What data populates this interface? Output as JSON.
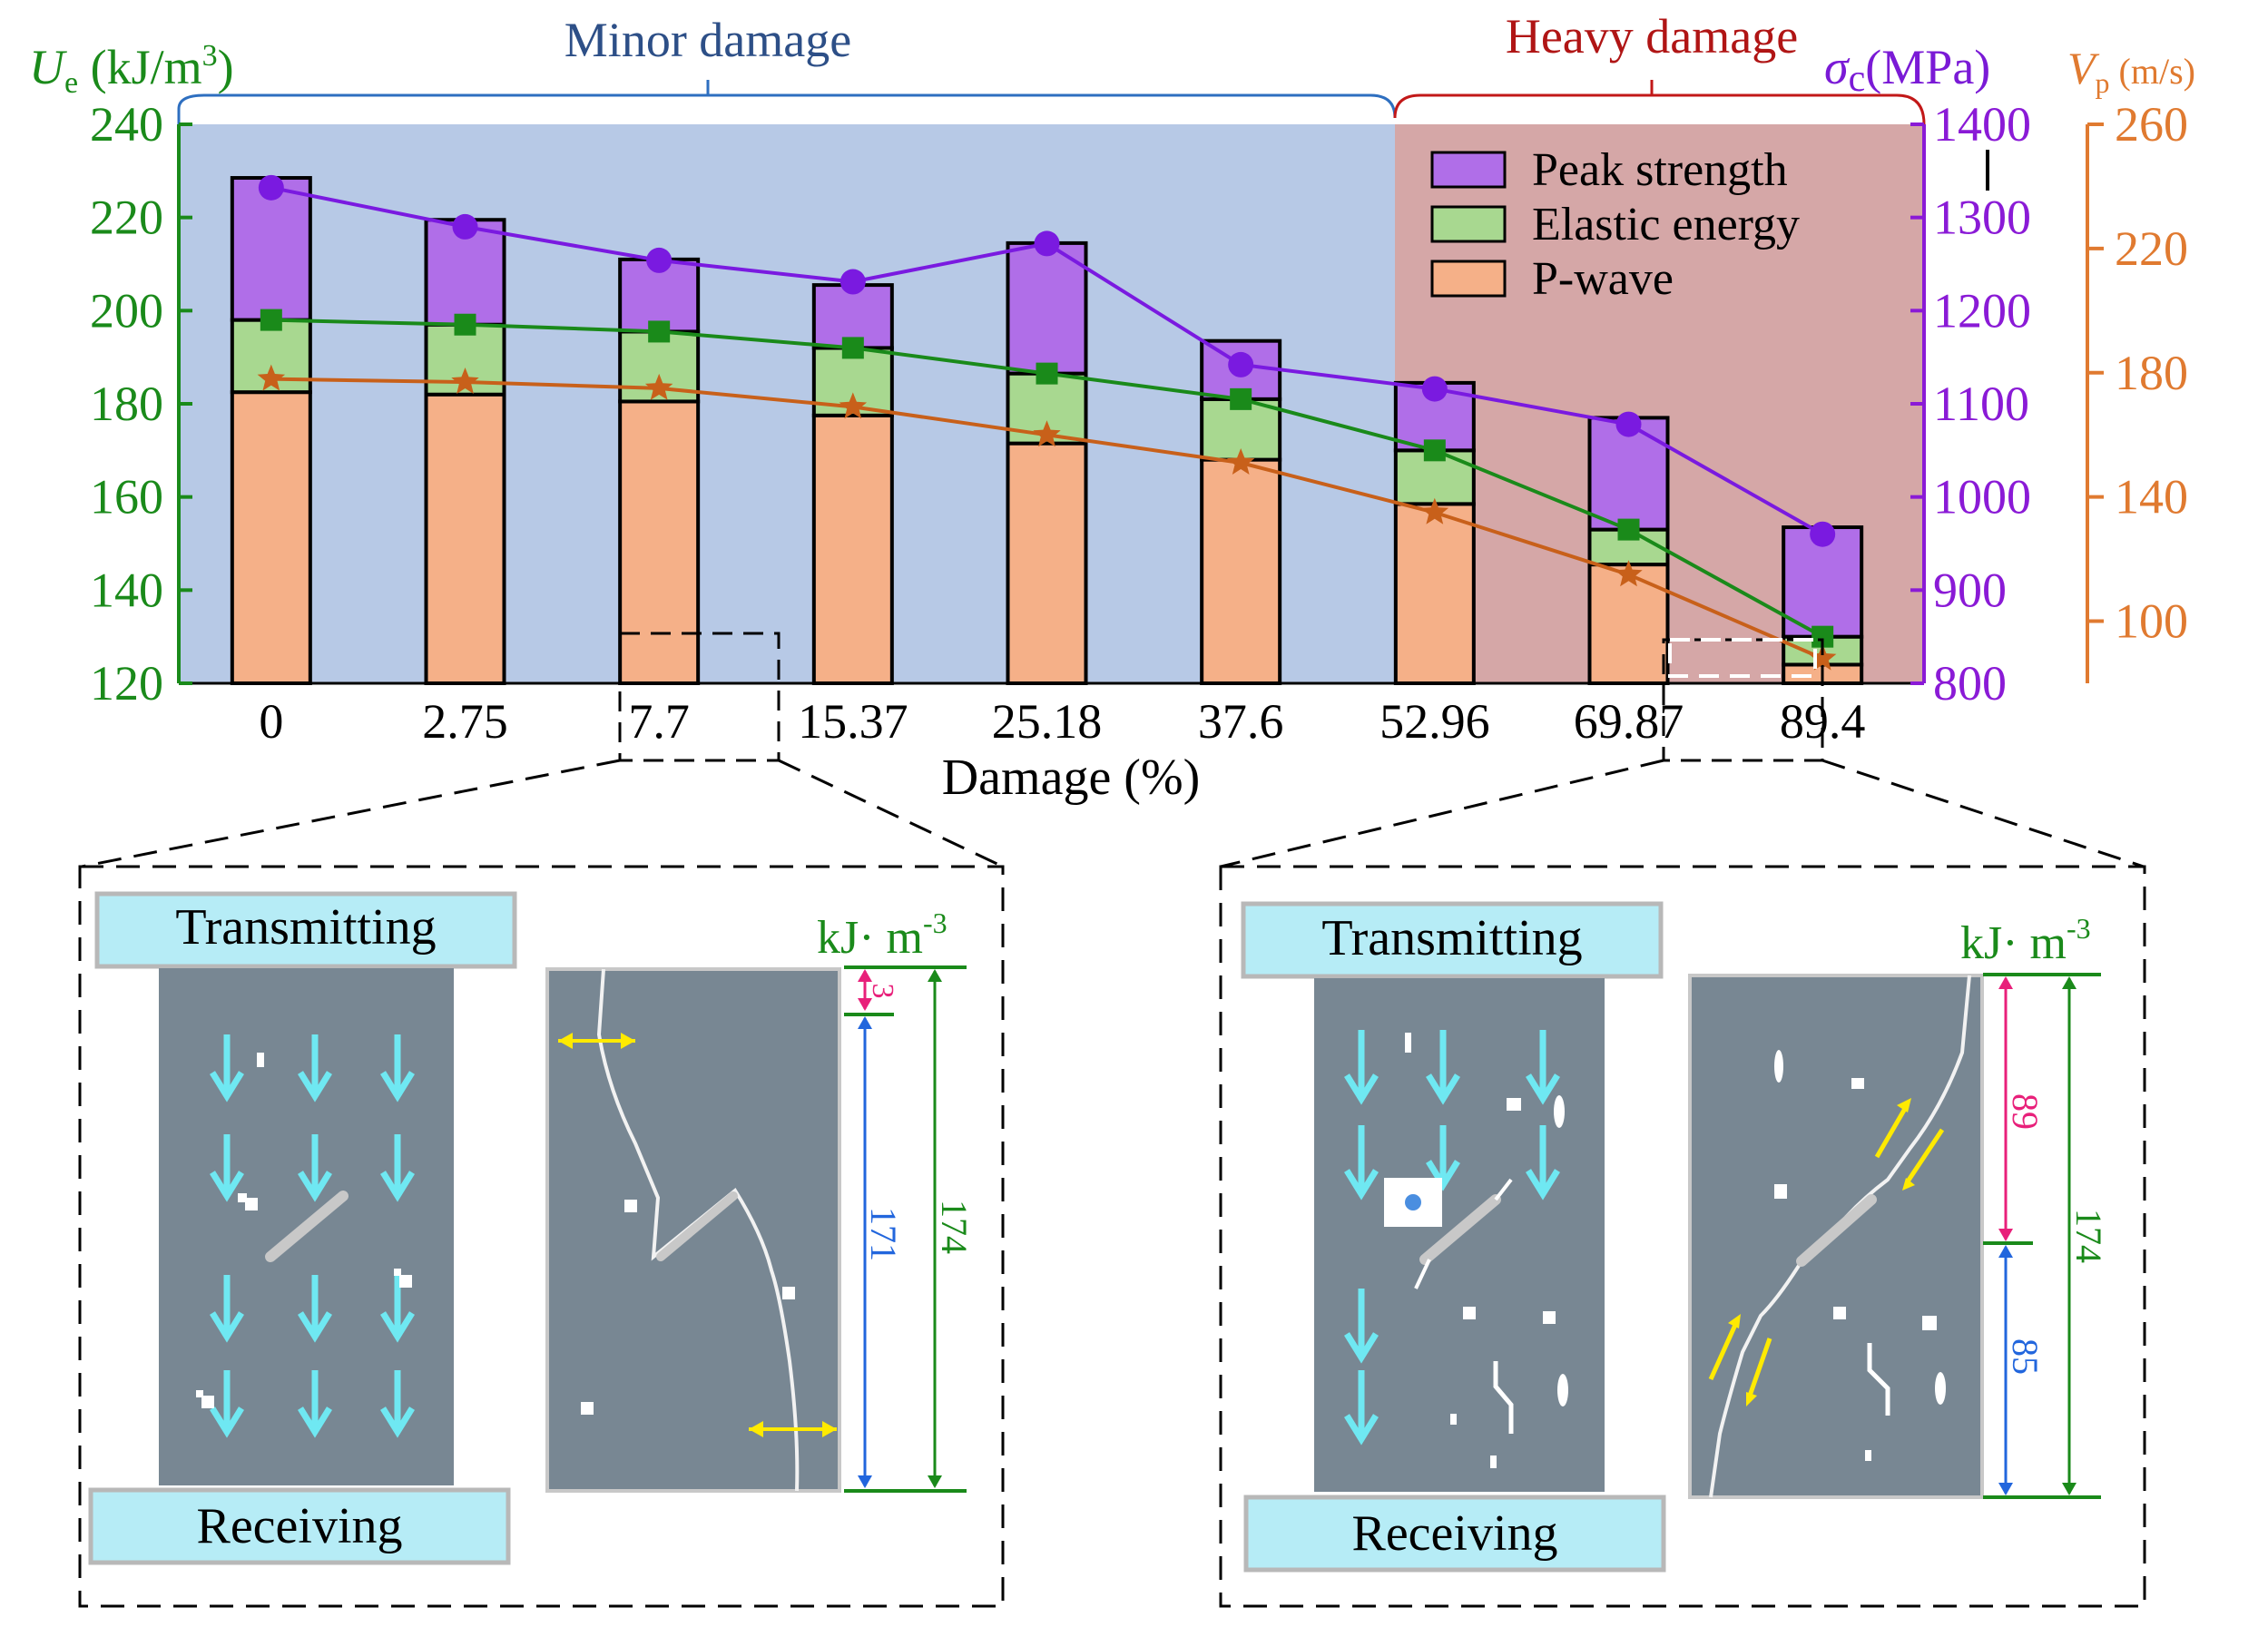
{
  "chart_data": {
    "type": "bar",
    "title": "",
    "xlabel": "Damage (%)",
    "categories": [
      "0",
      "2.75",
      "7.7",
      "15.37",
      "25.18",
      "37.6",
      "52.96",
      "69.87",
      "89.4"
    ],
    "region_labels": {
      "minor": "Minor damage",
      "heavy": "Heavy damage"
    },
    "axes": {
      "left": {
        "label_main": "U",
        "label_sub": "e",
        "label_unit": " (kJ/m",
        "label_sup": "3",
        "label_close": ")",
        "range": [
          120,
          240
        ],
        "ticks": [
          "120",
          "140",
          "160",
          "180",
          "200",
          "220",
          "240"
        ],
        "color": "#1a8a1a"
      },
      "right1": {
        "label_main": "σ",
        "label_sub": "c",
        "label_unit": "(MPa)",
        "range": [
          800,
          1400
        ],
        "ticks": [
          "800",
          "900",
          "1000",
          "1100",
          "1200",
          "1300",
          "1400"
        ],
        "color": "#8a1ad6"
      },
      "right2": {
        "label_main": "V",
        "label_sub": "p",
        "label_unit": " (m/s)",
        "range": [
          80,
          260
        ],
        "ticks": [
          "100",
          "140",
          "180",
          "220",
          "260"
        ],
        "color": "#e07a30"
      }
    },
    "legend": [
      "Peak strength",
      "Elastic energy",
      "P-wave"
    ],
    "series": [
      {
        "name": "Peak strength",
        "axis": "right1",
        "color": "#b06ee8",
        "line_color": "#7a1ae0",
        "marker": "circle",
        "values": [
          1332,
          1290,
          1254,
          1231,
          1272,
          1142,
          1116,
          1078,
          960
        ]
      },
      {
        "name": "Elastic energy",
        "axis": "left",
        "color": "#a8d890",
        "line_color": "#1a8a1a",
        "marker": "square",
        "values": [
          198,
          197,
          195.5,
          192,
          186.5,
          181,
          170,
          153,
          130
        ]
      },
      {
        "name": "P-wave",
        "axis": "right2",
        "color": "#f5b088",
        "line_color": "#c8601a",
        "marker": "star",
        "values": [
          178,
          177,
          175,
          169,
          160,
          151,
          135,
          115,
          88
        ]
      }
    ],
    "bar_tops_Ue": [
      228.5,
      219.5,
      211,
      205.5,
      214.5,
      193.5,
      184.5,
      177,
      153.5
    ],
    "bar_mid_Ue": [
      198,
      197,
      195.5,
      192,
      186.5,
      181,
      170,
      153,
      130
    ],
    "bar_low_Ue": [
      182.5,
      182,
      180.5,
      177.5,
      171.5,
      168,
      158.5,
      145.5,
      124
    ]
  },
  "insets": {
    "left": {
      "transmitting": "Transmitting",
      "receiving": "Receiving",
      "unit": "kJ· m",
      "unit_sup": "-3",
      "val_top": "3",
      "val_mid": "171",
      "val_total": "174"
    },
    "right": {
      "transmitting": "Transmitting",
      "receiving": "Receiving",
      "unit": "kJ· m",
      "unit_sup": "-3",
      "val_top": "89",
      "val_mid": "85",
      "val_total": "174"
    }
  }
}
